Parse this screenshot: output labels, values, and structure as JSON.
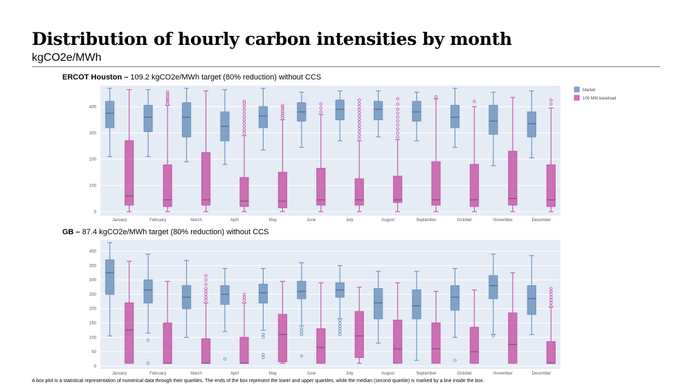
{
  "header": {
    "title": "Distribution of hourly carbon intensities by month",
    "subtitle": "kgCO2e/MWh"
  },
  "footnote": "A box plot is a statistical representation of numerical data through their quartiles. The ends of the box represent the lower and upper quartiles, while the median (second quartile) is marked by a line inside the box.",
  "colors": {
    "market": "#6f95bf",
    "baseload": "#c75aa8",
    "plot_bg": "#e5ecf6",
    "grid": "#ffffff"
  },
  "chart_data": [
    {
      "type": "box",
      "title_bold": "ERCOT Houston –",
      "title_rest": " 109.2 kgCO2e/MWh target (80% reduction) without CCS",
      "ylim": [
        -15,
        480
      ],
      "yticks": [
        0,
        100,
        200,
        300,
        400
      ],
      "legend": {
        "placement": "top-right",
        "labels": [
          "Market",
          "100 MW baseload"
        ]
      },
      "categories": [
        "January",
        "February",
        "March",
        "April",
        "May",
        "June",
        "July",
        "August",
        "September",
        "October",
        "November",
        "December"
      ],
      "series": [
        {
          "name": "Market",
          "color": "#6f95bf",
          "boxes": [
            {
              "min": 210,
              "q1": 320,
              "median": 375,
              "q3": 420,
              "max": 470,
              "outliers": []
            },
            {
              "min": 210,
              "q1": 305,
              "median": 360,
              "q3": 405,
              "max": 465,
              "outliers": []
            },
            {
              "min": 190,
              "q1": 285,
              "median": 360,
              "q3": 415,
              "max": 470,
              "outliers": []
            },
            {
              "min": 180,
              "q1": 270,
              "median": 325,
              "q3": 380,
              "max": 465,
              "outliers": []
            },
            {
              "min": 235,
              "q1": 320,
              "median": 365,
              "q3": 400,
              "max": 470,
              "outliers": []
            },
            {
              "min": 245,
              "q1": 345,
              "median": 380,
              "q3": 415,
              "max": 455,
              "outliers": []
            },
            {
              "min": 270,
              "q1": 350,
              "median": 390,
              "q3": 425,
              "max": 460,
              "outliers": []
            },
            {
              "min": 285,
              "q1": 350,
              "median": 390,
              "q3": 420,
              "max": 460,
              "outliers": []
            },
            {
              "min": 270,
              "q1": 345,
              "median": 380,
              "q3": 420,
              "max": 455,
              "outliers": []
            },
            {
              "min": 245,
              "q1": 320,
              "median": 360,
              "q3": 405,
              "max": 470,
              "outliers": []
            },
            {
              "min": 175,
              "q1": 295,
              "median": 345,
              "q3": 405,
              "max": 455,
              "outliers": []
            },
            {
              "min": 205,
              "q1": 285,
              "median": 335,
              "q3": 380,
              "max": 460,
              "outliers": []
            }
          ]
        },
        {
          "name": "100 MW baseload",
          "color": "#c75aa8",
          "boxes": [
            {
              "min": 0,
              "q1": 25,
              "median": 60,
              "q3": 270,
              "max": 465,
              "outliers": []
            },
            {
              "min": 0,
              "q1": 20,
              "median": 45,
              "q3": 178,
              "max": 405,
              "outliers": [
                410,
                418,
                425,
                432,
                440,
                448,
                455
              ]
            },
            {
              "min": 0,
              "q1": 25,
              "median": 45,
              "q3": 225,
              "max": 460,
              "outliers": []
            },
            {
              "min": 0,
              "q1": 20,
              "median": 40,
              "q3": 130,
              "max": 290,
              "outliers": [
                300,
                312,
                325,
                338,
                350,
                362,
                375,
                388,
                400,
                412,
                420
              ]
            },
            {
              "min": 0,
              "q1": 15,
              "median": 40,
              "q3": 150,
              "max": 350,
              "outliers": [
                358,
                366,
                374,
                382,
                390,
                398,
                405
              ]
            },
            {
              "min": 0,
              "q1": 25,
              "median": 45,
              "q3": 165,
              "max": 370,
              "outliers": [
                380,
                395,
                410
              ]
            },
            {
              "min": 0,
              "q1": 25,
              "median": 45,
              "q3": 125,
              "max": 270,
              "outliers": [
                280,
                292,
                304,
                316,
                328,
                340,
                352,
                364,
                376,
                388,
                400,
                412,
                425
              ]
            },
            {
              "min": 0,
              "q1": 35,
              "median": 45,
              "q3": 135,
              "max": 275,
              "outliers": [
                285,
                300,
                315,
                330,
                345,
                360,
                375,
                390,
                410,
                430
              ]
            },
            {
              "min": 0,
              "q1": 25,
              "median": 45,
              "q3": 190,
              "max": 430,
              "outliers": [
                438
              ]
            },
            {
              "min": 0,
              "q1": 20,
              "median": 45,
              "q3": 180,
              "max": 400,
              "outliers": [
                420
              ]
            },
            {
              "min": 0,
              "q1": 25,
              "median": 50,
              "q3": 230,
              "max": 435,
              "outliers": []
            },
            {
              "min": 0,
              "q1": 20,
              "median": 45,
              "q3": 178,
              "max": 395,
              "outliers": [
                410,
                425
              ]
            }
          ]
        }
      ]
    },
    {
      "type": "box",
      "title_bold": "GB –",
      "title_rest": " 87.4 kgCO2e/MWh target (80% reduction) without CCS",
      "ylim": [
        -10,
        440
      ],
      "yticks": [
        0,
        50,
        100,
        150,
        200,
        250,
        300,
        350,
        400
      ],
      "categories": [
        "January",
        "February",
        "March",
        "April",
        "May",
        "June",
        "July",
        "August",
        "September",
        "October",
        "November",
        "December"
      ],
      "series": [
        {
          "name": "Market",
          "color": "#6f95bf",
          "boxes": [
            {
              "min": 105,
              "q1": 250,
              "median": 325,
              "q3": 370,
              "max": 430,
              "outliers": []
            },
            {
              "min": 115,
              "q1": 220,
              "median": 265,
              "q3": 300,
              "max": 390,
              "outliers": [
                90,
                10
              ]
            },
            {
              "min": 100,
              "q1": 200,
              "median": 240,
              "q3": 280,
              "max": 368,
              "outliers": []
            },
            {
              "min": 120,
              "q1": 215,
              "median": 250,
              "q3": 280,
              "max": 340,
              "outliers": [
                25
              ]
            },
            {
              "min": 125,
              "q1": 220,
              "median": 255,
              "q3": 285,
              "max": 340,
              "outliers": [
                110,
                100,
                40,
                30
              ]
            },
            {
              "min": 140,
              "q1": 235,
              "median": 260,
              "q3": 295,
              "max": 360,
              "outliers": [
                130,
                120,
                110,
                35
              ]
            },
            {
              "min": 165,
              "q1": 240,
              "median": 265,
              "q3": 290,
              "max": 350,
              "outliers": [
                160,
                150,
                140,
                130,
                120,
                110
              ]
            },
            {
              "min": 80,
              "q1": 165,
              "median": 220,
              "q3": 270,
              "max": 330,
              "outliers": []
            },
            {
              "min": 20,
              "q1": 165,
              "median": 210,
              "q3": 265,
              "max": 330,
              "outliers": []
            },
            {
              "min": 100,
              "q1": 195,
              "median": 240,
              "q3": 280,
              "max": 340,
              "outliers": [
                20
              ]
            },
            {
              "min": 110,
              "q1": 235,
              "median": 280,
              "q3": 315,
              "max": 390,
              "outliers": [
                105
              ]
            },
            {
              "min": 110,
              "q1": 180,
              "median": 235,
              "q3": 280,
              "max": 385,
              "outliers": []
            }
          ]
        },
        {
          "name": "100 MW baseload",
          "color": "#c75aa8",
          "boxes": [
            {
              "min": 10,
              "q1": 10,
              "median": 125,
              "q3": 220,
              "max": 365,
              "outliers": []
            },
            {
              "min": 10,
              "q1": 10,
              "median": 10,
              "q3": 150,
              "max": 295,
              "outliers": []
            },
            {
              "min": 10,
              "q1": 10,
              "median": 10,
              "q3": 95,
              "max": 220,
              "outliers": [
                230,
                240,
                250,
                260,
                270,
                285,
                300,
                315
              ]
            },
            {
              "min": 10,
              "q1": 10,
              "median": 10,
              "q3": 100,
              "max": 220,
              "outliers": [
                230,
                240,
                250
              ]
            },
            {
              "min": 10,
              "q1": 15,
              "median": 110,
              "q3": 180,
              "max": 295,
              "outliers": []
            },
            {
              "min": 10,
              "q1": 10,
              "median": 65,
              "q3": 130,
              "max": 290,
              "outliers": []
            },
            {
              "min": 10,
              "q1": 30,
              "median": 105,
              "q3": 190,
              "max": 275,
              "outliers": []
            },
            {
              "min": 10,
              "q1": 10,
              "median": 60,
              "q3": 160,
              "max": 290,
              "outliers": []
            },
            {
              "min": 10,
              "q1": 10,
              "median": 60,
              "q3": 150,
              "max": 260,
              "outliers": []
            },
            {
              "min": 10,
              "q1": 10,
              "median": 50,
              "q3": 135,
              "max": 265,
              "outliers": []
            },
            {
              "min": 10,
              "q1": 10,
              "median": 75,
              "q3": 185,
              "max": 325,
              "outliers": []
            },
            {
              "min": 10,
              "q1": 10,
              "median": 10,
              "q3": 85,
              "max": 205,
              "outliers": [
                210,
                220,
                230,
                240,
                250,
                260,
                270
              ]
            }
          ]
        }
      ]
    }
  ]
}
